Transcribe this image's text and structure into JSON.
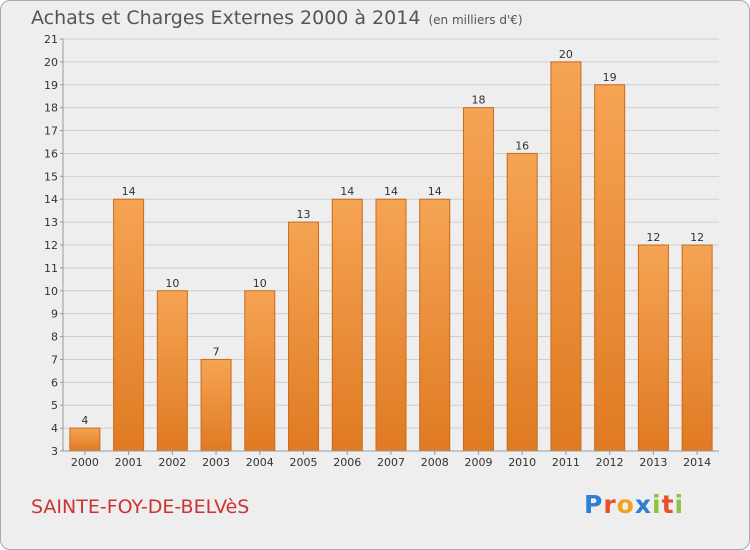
{
  "header": {
    "title": "Achats et Charges Externes 2000 à 2014",
    "unit": "(en milliers d'€)"
  },
  "footer": {
    "commune": "SAINTE-FOY-DE-BELVèS",
    "logo_text": "Proxiti",
    "logo_letters": [
      {
        "ch": "P",
        "color": "#2f7fd0"
      },
      {
        "ch": "r",
        "color": "#e8502a"
      },
      {
        "ch": "o",
        "color": "#f4a11e"
      },
      {
        "ch": "x",
        "color": "#2f7fd0"
      },
      {
        "ch": "i",
        "color": "#8bc43f"
      },
      {
        "ch": "t",
        "color": "#e8502a"
      },
      {
        "ch": "i",
        "color": "#8bc43f"
      }
    ]
  },
  "colors": {
    "bar_light": "#f5a453",
    "bar_dark": "#e07a23",
    "bar_stroke": "#c96a1a",
    "grid": "#cfcfcf",
    "axis": "#999999",
    "text": "#333333"
  },
  "chart_data": {
    "type": "bar",
    "title": "Achats et Charges Externes 2000 à 2014",
    "ylim": [
      3,
      21
    ],
    "yticks": [
      3,
      4,
      5,
      6,
      7,
      8,
      9,
      10,
      11,
      12,
      13,
      14,
      15,
      16,
      17,
      18,
      19,
      20,
      21
    ],
    "grid": true,
    "categories": [
      "2000",
      "2001",
      "2002",
      "2003",
      "2004",
      "2005",
      "2006",
      "2007",
      "2008",
      "2009",
      "2010",
      "2011",
      "2012",
      "2013",
      "2014"
    ],
    "values": [
      4,
      14,
      10,
      7,
      10,
      13,
      14,
      14,
      14,
      18,
      16,
      20,
      19,
      12,
      12
    ],
    "value_labels": [
      "4",
      "14",
      "10",
      "7",
      "10",
      "13",
      "14",
      "14",
      "14",
      "18",
      "16",
      "20",
      "19",
      "12",
      "12"
    ]
  }
}
